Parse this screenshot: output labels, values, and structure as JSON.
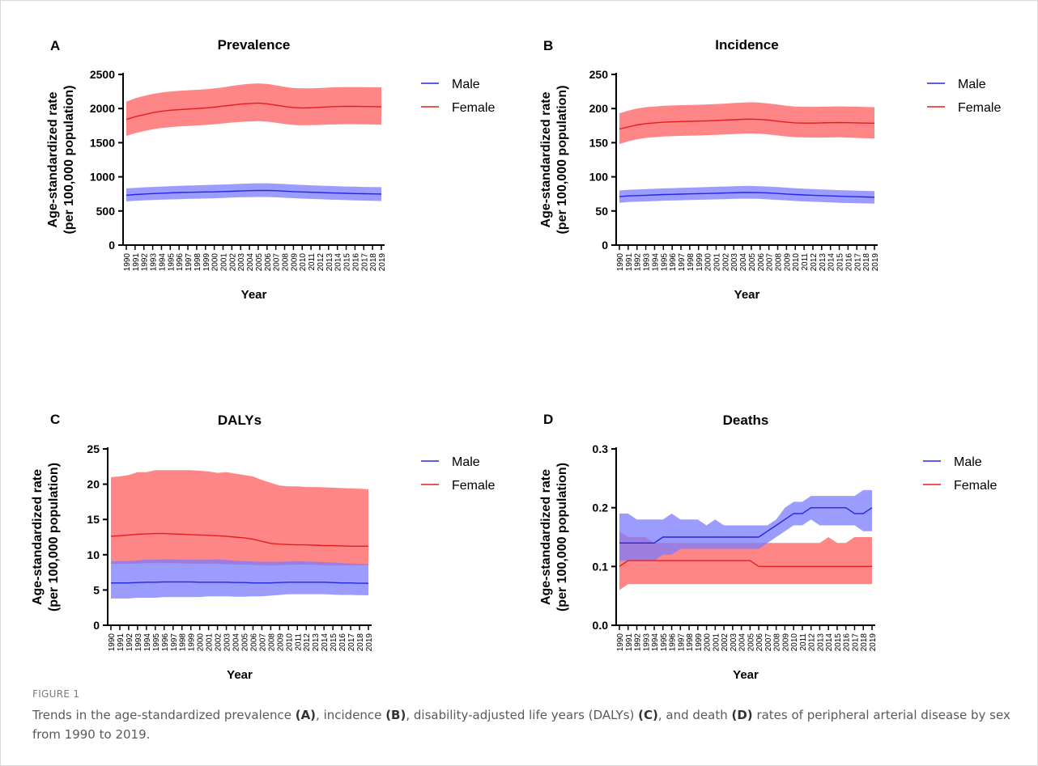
{
  "figure": {
    "label": "FIGURE 1",
    "caption_parts": [
      {
        "text": "Trends in the age-standardized prevalence ",
        "bold": false
      },
      {
        "text": "(A)",
        "bold": true
      },
      {
        "text": ", incidence ",
        "bold": false
      },
      {
        "text": "(B)",
        "bold": true
      },
      {
        "text": ", disability-adjusted life years (DALYs) ",
        "bold": false
      },
      {
        "text": "(C)",
        "bold": true
      },
      {
        "text": ", and death ",
        "bold": false
      },
      {
        "text": "(D)",
        "bold": true
      },
      {
        "text": " rates of peripheral arterial disease by sex from 1990 to 2019.",
        "bold": false
      }
    ]
  },
  "colors": {
    "male_line": "#2525e6",
    "male_band": "#7b7bff",
    "female_line": "#e81c1c",
    "female_band": "#ff8080",
    "axis": "#000000"
  },
  "chart_data": [
    {
      "type": "line",
      "panel": "A",
      "title": "Prevalence",
      "xlabel": "Year",
      "ylabel": [
        "Age-standardized rate",
        "(per 100,000 population)"
      ],
      "ylim": [
        0,
        2500
      ],
      "yticks": [
        0,
        500,
        1000,
        1500,
        2000,
        2500
      ],
      "ytick_labels": [
        "0",
        "500",
        "1000",
        "1500",
        "2000",
        "2500"
      ],
      "legend": [
        "Male",
        "Female"
      ],
      "legend_position": "right",
      "x": [
        1990,
        1991,
        1992,
        1993,
        1994,
        1995,
        1996,
        1997,
        1998,
        1999,
        2000,
        2001,
        2002,
        2003,
        2004,
        2005,
        2006,
        2007,
        2008,
        2009,
        2010,
        2011,
        2012,
        2013,
        2014,
        2015,
        2016,
        2017,
        2018,
        2019
      ],
      "series": [
        {
          "name": "Male",
          "values": [
            730,
            740,
            748,
            755,
            760,
            765,
            770,
            773,
            775,
            778,
            780,
            784,
            788,
            793,
            797,
            800,
            800,
            797,
            790,
            783,
            778,
            774,
            770,
            765,
            762,
            758,
            755,
            752,
            750,
            748
          ],
          "lower": [
            640,
            648,
            655,
            660,
            665,
            670,
            673,
            677,
            680,
            683,
            686,
            690,
            695,
            700,
            703,
            705,
            704,
            700,
            693,
            687,
            681,
            676,
            672,
            667,
            663,
            659,
            655,
            652,
            649,
            646
          ],
          "upper": [
            830,
            838,
            846,
            852,
            858,
            863,
            868,
            872,
            876,
            880,
            884,
            888,
            892,
            897,
            902,
            905,
            905,
            901,
            894,
            887,
            881,
            876,
            871,
            866,
            862,
            858,
            855,
            852,
            850,
            848
          ]
        },
        {
          "name": "Female",
          "values": [
            1840,
            1880,
            1910,
            1940,
            1960,
            1975,
            1985,
            1992,
            2000,
            2008,
            2020,
            2035,
            2050,
            2065,
            2075,
            2080,
            2070,
            2050,
            2030,
            2015,
            2010,
            2012,
            2018,
            2025,
            2030,
            2032,
            2032,
            2030,
            2028,
            2025
          ],
          "lower": [
            1600,
            1640,
            1670,
            1695,
            1715,
            1728,
            1738,
            1745,
            1752,
            1760,
            1770,
            1782,
            1795,
            1805,
            1812,
            1815,
            1808,
            1792,
            1775,
            1760,
            1755,
            1757,
            1760,
            1765,
            1768,
            1770,
            1770,
            1768,
            1766,
            1764
          ],
          "upper": [
            2100,
            2150,
            2185,
            2215,
            2235,
            2250,
            2260,
            2268,
            2275,
            2282,
            2295,
            2310,
            2330,
            2350,
            2362,
            2368,
            2360,
            2340,
            2318,
            2300,
            2295,
            2296,
            2300,
            2308,
            2312,
            2315,
            2315,
            2314,
            2312,
            2310
          ]
        }
      ]
    },
    {
      "type": "line",
      "panel": "B",
      "title": "Incidence",
      "xlabel": "Year",
      "ylabel": [
        "Age-standardized rate",
        "(per 100,000 population)"
      ],
      "ylim": [
        0,
        250
      ],
      "yticks": [
        0,
        50,
        100,
        150,
        200,
        250
      ],
      "ytick_labels": [
        "0",
        "50",
        "100",
        "150",
        "200",
        "250"
      ],
      "legend": [
        "Male",
        "Female"
      ],
      "legend_position": "right",
      "x": [
        1990,
        1991,
        1992,
        1993,
        1994,
        1995,
        1996,
        1997,
        1998,
        1999,
        2000,
        2001,
        2002,
        2003,
        2004,
        2005,
        2006,
        2007,
        2008,
        2009,
        2010,
        2011,
        2012,
        2013,
        2014,
        2015,
        2016,
        2017,
        2018,
        2019
      ],
      "series": [
        {
          "name": "Male",
          "values": [
            71,
            72,
            72.5,
            73,
            73.5,
            74,
            74.3,
            74.6,
            75,
            75.3,
            75.6,
            76,
            76.3,
            76.6,
            77,
            77,
            76.8,
            76.3,
            75.6,
            74.8,
            74,
            73.5,
            73,
            72.5,
            72,
            71.6,
            71.2,
            70.8,
            70.5,
            70.2
          ],
          "lower": [
            62,
            63,
            63.5,
            64,
            64.5,
            65,
            65.3,
            65.6,
            66,
            66.3,
            66.6,
            67,
            67.3,
            67.6,
            68,
            68,
            67.6,
            67,
            66.2,
            65.4,
            64.6,
            64,
            63.5,
            63,
            62.5,
            62,
            61.6,
            61.2,
            61,
            60.7
          ],
          "upper": [
            80,
            81,
            81.5,
            82,
            82.5,
            83,
            83.4,
            83.8,
            84.2,
            84.6,
            85,
            85.4,
            85.8,
            86.2,
            86.6,
            86.6,
            86.3,
            85.7,
            84.9,
            84.1,
            83.3,
            82.7,
            82.1,
            81.5,
            81,
            80.5,
            80.1,
            79.7,
            79.4,
            79.1
          ]
        },
        {
          "name": "Female",
          "values": [
            170,
            173,
            176,
            178,
            179,
            180,
            180.5,
            181,
            181.3,
            181.6,
            182,
            182.5,
            183,
            183.6,
            184.2,
            184.5,
            184,
            183,
            181.5,
            180,
            179,
            178.7,
            178.7,
            179,
            179.3,
            179.5,
            179.3,
            179,
            178.7,
            178.5
          ],
          "lower": [
            148,
            152,
            155,
            157,
            158,
            159,
            159.5,
            160,
            160.3,
            160.6,
            161,
            161.5,
            162,
            162.6,
            163.2,
            163.5,
            163,
            162,
            160.5,
            159,
            158,
            157.7,
            157.5,
            157.5,
            157.7,
            157.8,
            157.5,
            157,
            156.5,
            156
          ],
          "upper": [
            193,
            197,
            200,
            202,
            203,
            204,
            204.5,
            205,
            205.3,
            205.6,
            206,
            206.6,
            207.2,
            208,
            208.8,
            209.2,
            208.6,
            207.4,
            205.8,
            204.2,
            203,
            202.6,
            202.5,
            202.7,
            203,
            203.2,
            203,
            202.7,
            202.4,
            202
          ]
        }
      ]
    },
    {
      "type": "line",
      "panel": "C",
      "title": "DALYs",
      "xlabel": "Year",
      "ylabel": [
        "Age-standardized rate",
        "(per 100,000 population)"
      ],
      "ylim": [
        0,
        25
      ],
      "yticks": [
        0,
        5,
        10,
        15,
        20,
        25
      ],
      "ytick_labels": [
        "0",
        "5",
        "10",
        "15",
        "20",
        "25"
      ],
      "legend": [
        "Male",
        "Female"
      ],
      "legend_position": "right",
      "x": [
        1990,
        1991,
        1992,
        1993,
        1994,
        1995,
        1996,
        1997,
        1998,
        1999,
        2000,
        2001,
        2002,
        2003,
        2004,
        2005,
        2006,
        2007,
        2008,
        2009,
        2010,
        2011,
        2012,
        2013,
        2014,
        2015,
        2016,
        2017,
        2018,
        2019
      ],
      "series": [
        {
          "name": "Male",
          "values": [
            6.0,
            6.0,
            6.0,
            6.05,
            6.1,
            6.1,
            6.15,
            6.15,
            6.15,
            6.15,
            6.1,
            6.1,
            6.1,
            6.1,
            6.05,
            6.05,
            6.0,
            6.0,
            6.0,
            6.05,
            6.1,
            6.1,
            6.1,
            6.1,
            6.1,
            6.05,
            6.0,
            6.0,
            5.95,
            5.95
          ],
          "lower": [
            3.8,
            3.8,
            3.8,
            3.9,
            3.9,
            3.9,
            4.0,
            4.0,
            4.0,
            4.0,
            4.0,
            4.1,
            4.1,
            4.1,
            4.05,
            4.05,
            4.1,
            4.1,
            4.2,
            4.3,
            4.4,
            4.4,
            4.4,
            4.4,
            4.4,
            4.35,
            4.3,
            4.3,
            4.25,
            4.25
          ],
          "upper": [
            9.1,
            9.1,
            9.1,
            9.2,
            9.3,
            9.3,
            9.35,
            9.35,
            9.3,
            9.3,
            9.25,
            9.3,
            9.35,
            9.25,
            9.15,
            9.1,
            9.05,
            9.0,
            9.0,
            9.0,
            9.05,
            9.1,
            9.05,
            9.0,
            8.95,
            8.9,
            8.8,
            8.75,
            8.7,
            8.7
          ]
        },
        {
          "name": "Female",
          "values": [
            12.6,
            12.7,
            12.8,
            12.9,
            12.95,
            13.0,
            13.0,
            12.95,
            12.9,
            12.85,
            12.8,
            12.75,
            12.7,
            12.6,
            12.5,
            12.4,
            12.2,
            11.9,
            11.6,
            11.5,
            11.45,
            11.4,
            11.4,
            11.35,
            11.3,
            11.3,
            11.25,
            11.2,
            11.2,
            11.2
          ],
          "lower": [
            8.7,
            8.7,
            8.7,
            8.75,
            8.8,
            8.8,
            8.8,
            8.8,
            8.75,
            8.75,
            8.7,
            8.7,
            8.7,
            8.65,
            8.6,
            8.6,
            8.55,
            8.5,
            8.5,
            8.5,
            8.55,
            8.6,
            8.6,
            8.55,
            8.5,
            8.5,
            8.5,
            8.5,
            8.5,
            8.5
          ],
          "upper": [
            21.0,
            21.1,
            21.3,
            21.7,
            21.7,
            22.0,
            22.0,
            22.0,
            22.0,
            22.0,
            21.9,
            21.8,
            21.6,
            21.7,
            21.5,
            21.3,
            21.1,
            20.6,
            20.2,
            19.8,
            19.7,
            19.7,
            19.6,
            19.6,
            19.55,
            19.5,
            19.45,
            19.4,
            19.35,
            19.3
          ]
        }
      ]
    },
    {
      "type": "line",
      "panel": "D",
      "title": "Deaths",
      "xlabel": "Year",
      "ylabel": [
        "Age-standardized rate",
        "(per 100,000 population)"
      ],
      "ylim": [
        0,
        0.3
      ],
      "yticks": [
        0,
        0.1,
        0.2,
        0.3
      ],
      "ytick_labels": [
        "0.0",
        "0.1",
        "0.2",
        "0.3"
      ],
      "legend": [
        "Male",
        "Female"
      ],
      "legend_position": "right",
      "x": [
        1990,
        1991,
        1992,
        1993,
        1994,
        1995,
        1996,
        1997,
        1998,
        1999,
        2000,
        2001,
        2002,
        2003,
        2004,
        2005,
        2006,
        2007,
        2008,
        2009,
        2010,
        2011,
        2012,
        2013,
        2014,
        2015,
        2016,
        2017,
        2018,
        2019
      ],
      "series": [
        {
          "name": "Male",
          "values": [
            0.14,
            0.14,
            0.14,
            0.14,
            0.14,
            0.15,
            0.15,
            0.15,
            0.15,
            0.15,
            0.15,
            0.15,
            0.15,
            0.15,
            0.15,
            0.15,
            0.15,
            0.16,
            0.17,
            0.18,
            0.19,
            0.19,
            0.2,
            0.2,
            0.2,
            0.2,
            0.2,
            0.19,
            0.19,
            0.2
          ],
          "lower": [
            0.11,
            0.11,
            0.11,
            0.11,
            0.11,
            0.12,
            0.12,
            0.13,
            0.13,
            0.13,
            0.13,
            0.13,
            0.13,
            0.13,
            0.13,
            0.13,
            0.13,
            0.14,
            0.15,
            0.16,
            0.17,
            0.17,
            0.18,
            0.17,
            0.17,
            0.17,
            0.17,
            0.17,
            0.16,
            0.16
          ],
          "upper": [
            0.19,
            0.19,
            0.18,
            0.18,
            0.18,
            0.18,
            0.19,
            0.18,
            0.18,
            0.18,
            0.17,
            0.18,
            0.17,
            0.17,
            0.17,
            0.17,
            0.17,
            0.17,
            0.18,
            0.2,
            0.21,
            0.21,
            0.22,
            0.22,
            0.22,
            0.22,
            0.22,
            0.22,
            0.23,
            0.23
          ]
        },
        {
          "name": "Female",
          "values": [
            0.1,
            0.11,
            0.11,
            0.11,
            0.11,
            0.11,
            0.11,
            0.11,
            0.11,
            0.11,
            0.11,
            0.11,
            0.11,
            0.11,
            0.11,
            0.11,
            0.1,
            0.1,
            0.1,
            0.1,
            0.1,
            0.1,
            0.1,
            0.1,
            0.1,
            0.1,
            0.1,
            0.1,
            0.1,
            0.1
          ],
          "lower": [
            0.06,
            0.07,
            0.07,
            0.07,
            0.07,
            0.07,
            0.07,
            0.07,
            0.07,
            0.07,
            0.07,
            0.07,
            0.07,
            0.07,
            0.07,
            0.07,
            0.07,
            0.07,
            0.07,
            0.07,
            0.07,
            0.07,
            0.07,
            0.07,
            0.07,
            0.07,
            0.07,
            0.07,
            0.07,
            0.07
          ],
          "upper": [
            0.16,
            0.15,
            0.15,
            0.15,
            0.14,
            0.14,
            0.14,
            0.14,
            0.14,
            0.14,
            0.14,
            0.14,
            0.14,
            0.14,
            0.14,
            0.14,
            0.14,
            0.14,
            0.14,
            0.14,
            0.14,
            0.14,
            0.14,
            0.14,
            0.15,
            0.14,
            0.14,
            0.15,
            0.15,
            0.15
          ]
        }
      ]
    }
  ]
}
